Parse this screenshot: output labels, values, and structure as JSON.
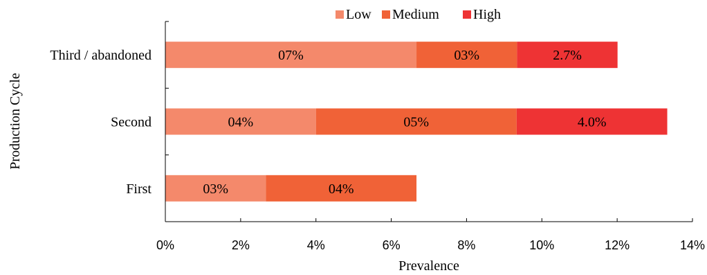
{
  "chart_data": {
    "type": "bar",
    "orientation": "horizontal",
    "stacked": true,
    "ylabel": "Production Cycle",
    "xlabel": "Prevalence",
    "categories": [
      "First",
      "Second",
      "Third / abandoned"
    ],
    "series": [
      {
        "name": "Low",
        "color": "#f4896b",
        "values": [
          2.67,
          4.0,
          6.67
        ],
        "labels": [
          "03%",
          "04%",
          "07%"
        ]
      },
      {
        "name": "Medium",
        "color": "#f06237",
        "values": [
          4.0,
          5.33,
          2.67
        ],
        "labels": [
          "04%",
          "05%",
          "03%"
        ]
      },
      {
        "name": "High",
        "color": "#ee3334",
        "values": [
          0,
          4.0,
          2.67
        ],
        "labels": [
          "",
          "4.0%",
          "2.7%"
        ]
      }
    ],
    "xlim": [
      0,
      14
    ],
    "xticks": [
      0,
      2,
      4,
      6,
      8,
      10,
      12,
      14
    ],
    "xtick_labels": [
      "0%",
      "2%",
      "4%",
      "6%",
      "8%",
      "10%",
      "12%",
      "14%"
    ],
    "legend_position": "top",
    "grid": false
  }
}
